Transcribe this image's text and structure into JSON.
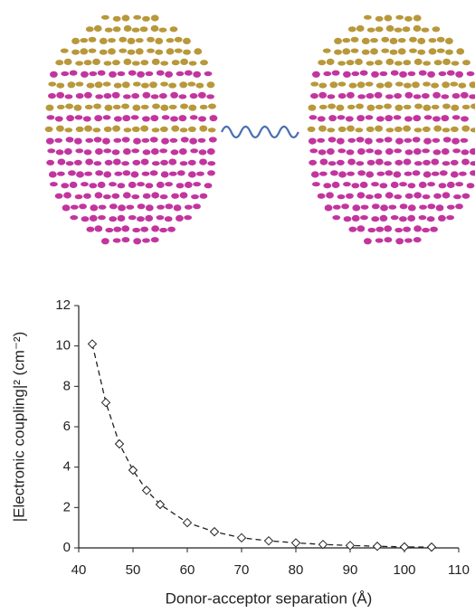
{
  "chart_data": {
    "type": "line",
    "x_label": "Donor-acceptor separation (Å)",
    "y_label": "|Electronic coupling|² (cm⁻²)",
    "x": [
      42.5,
      45,
      47.5,
      50,
      52.5,
      55,
      60,
      65,
      70,
      75,
      80,
      85,
      90,
      95,
      100,
      105
    ],
    "values": [
      10.1,
      7.2,
      5.15,
      3.85,
      2.85,
      2.15,
      1.25,
      0.8,
      0.5,
      0.35,
      0.25,
      0.17,
      0.12,
      0.08,
      0.05,
      0.04
    ],
    "color": "#222222",
    "xlim": [
      40,
      110
    ],
    "xticks": [
      40,
      50,
      60,
      70,
      80,
      90,
      100,
      110
    ],
    "ylim": [
      0,
      12
    ],
    "yticks": [
      0,
      2,
      4,
      6,
      8,
      10,
      12
    ]
  }
}
